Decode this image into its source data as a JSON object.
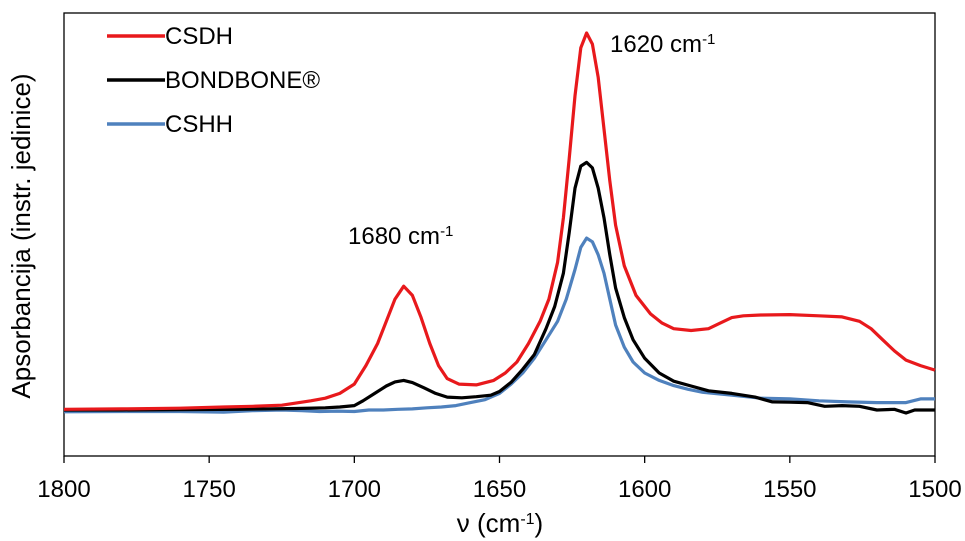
{
  "chart_data": {
    "type": "line",
    "title": "",
    "xlabel_main": "ν (cm",
    "xlabel_sup": "-1",
    "xlabel_end": ")",
    "ylabel": "Apsorbancija (instr. jedinice)",
    "xlim": [
      1800,
      1500
    ],
    "x_reversed": true,
    "ylim": [
      0,
      1.08
    ],
    "x_ticks": [
      1800,
      1750,
      1700,
      1650,
      1600,
      1550,
      1500
    ],
    "y_ticks_labeled": false,
    "grid": false,
    "legend": "top-left",
    "annotations": [
      {
        "id": "peak-1620",
        "text": "1620 cm",
        "sup": "-1",
        "x": 1620,
        "y": 1.02
      },
      {
        "id": "peak-1680",
        "text": "1680 cm",
        "sup": "-1",
        "x": 1680,
        "y": 0.46
      }
    ],
    "series": [
      {
        "name": "CSDH",
        "color": "#e8191c",
        "points": [
          [
            1800,
            0.002
          ],
          [
            1780,
            0.003
          ],
          [
            1760,
            0.005
          ],
          [
            1745,
            0.008
          ],
          [
            1735,
            0.01
          ],
          [
            1725,
            0.013
          ],
          [
            1715,
            0.025
          ],
          [
            1710,
            0.032
          ],
          [
            1705,
            0.045
          ],
          [
            1700,
            0.07
          ],
          [
            1696,
            0.12
          ],
          [
            1692,
            0.18
          ],
          [
            1689,
            0.24
          ],
          [
            1686,
            0.3
          ],
          [
            1683,
            0.335
          ],
          [
            1680,
            0.31
          ],
          [
            1677,
            0.25
          ],
          [
            1674,
            0.18
          ],
          [
            1671,
            0.12
          ],
          [
            1668,
            0.085
          ],
          [
            1664,
            0.07
          ],
          [
            1658,
            0.068
          ],
          [
            1652,
            0.08
          ],
          [
            1648,
            0.1
          ],
          [
            1644,
            0.13
          ],
          [
            1640,
            0.18
          ],
          [
            1636,
            0.24
          ],
          [
            1633,
            0.3
          ],
          [
            1630,
            0.4
          ],
          [
            1628,
            0.52
          ],
          [
            1626,
            0.68
          ],
          [
            1624,
            0.85
          ],
          [
            1622,
            0.98
          ],
          [
            1620,
            1.02
          ],
          [
            1618,
            0.99
          ],
          [
            1616,
            0.9
          ],
          [
            1614,
            0.76
          ],
          [
            1612,
            0.62
          ],
          [
            1610,
            0.5
          ],
          [
            1607,
            0.39
          ],
          [
            1603,
            0.31
          ],
          [
            1598,
            0.26
          ],
          [
            1594,
            0.235
          ],
          [
            1590,
            0.22
          ],
          [
            1584,
            0.215
          ],
          [
            1578,
            0.22
          ],
          [
            1574,
            0.235
          ],
          [
            1570,
            0.25
          ],
          [
            1566,
            0.255
          ],
          [
            1560,
            0.257
          ],
          [
            1550,
            0.258
          ],
          [
            1540,
            0.255
          ],
          [
            1532,
            0.252
          ],
          [
            1526,
            0.24
          ],
          [
            1522,
            0.22
          ],
          [
            1518,
            0.19
          ],
          [
            1514,
            0.16
          ],
          [
            1510,
            0.135
          ],
          [
            1505,
            0.12
          ],
          [
            1500,
            0.108
          ]
        ]
      },
      {
        "name": "BONDBONE®",
        "color": "#000000",
        "points": [
          [
            1800,
            0.0
          ],
          [
            1780,
            0.0
          ],
          [
            1760,
            0.001
          ],
          [
            1740,
            0.002
          ],
          [
            1720,
            0.004
          ],
          [
            1710,
            0.006
          ],
          [
            1705,
            0.008
          ],
          [
            1700,
            0.012
          ],
          [
            1697,
            0.025
          ],
          [
            1693,
            0.045
          ],
          [
            1689,
            0.065
          ],
          [
            1686,
            0.076
          ],
          [
            1683,
            0.08
          ],
          [
            1680,
            0.074
          ],
          [
            1676,
            0.06
          ],
          [
            1672,
            0.045
          ],
          [
            1668,
            0.035
          ],
          [
            1663,
            0.033
          ],
          [
            1658,
            0.036
          ],
          [
            1653,
            0.04
          ],
          [
            1650,
            0.05
          ],
          [
            1646,
            0.075
          ],
          [
            1642,
            0.11
          ],
          [
            1638,
            0.15
          ],
          [
            1634,
            0.22
          ],
          [
            1631,
            0.28
          ],
          [
            1628,
            0.37
          ],
          [
            1626,
            0.48
          ],
          [
            1624,
            0.6
          ],
          [
            1622,
            0.66
          ],
          [
            1620,
            0.67
          ],
          [
            1618,
            0.655
          ],
          [
            1616,
            0.6
          ],
          [
            1614,
            0.52
          ],
          [
            1612,
            0.42
          ],
          [
            1610,
            0.33
          ],
          [
            1607,
            0.25
          ],
          [
            1604,
            0.19
          ],
          [
            1600,
            0.14
          ],
          [
            1595,
            0.1
          ],
          [
            1590,
            0.078
          ],
          [
            1584,
            0.065
          ],
          [
            1578,
            0.052
          ],
          [
            1570,
            0.045
          ],
          [
            1562,
            0.035
          ],
          [
            1556,
            0.022
          ],
          [
            1550,
            0.021
          ],
          [
            1544,
            0.02
          ],
          [
            1538,
            0.01
          ],
          [
            1532,
            0.012
          ],
          [
            1526,
            0.01
          ],
          [
            1520,
            0.0
          ],
          [
            1514,
            0.002
          ],
          [
            1510,
            -0.008
          ],
          [
            1507,
            0.0
          ],
          [
            1500,
            0.0
          ]
        ]
      },
      {
        "name": "CSHH",
        "color": "#4f81bd",
        "points": [
          [
            1800,
            -0.005
          ],
          [
            1780,
            -0.004
          ],
          [
            1760,
            -0.004
          ],
          [
            1745,
            -0.006
          ],
          [
            1735,
            -0.002
          ],
          [
            1725,
            0.0
          ],
          [
            1718,
            -0.002
          ],
          [
            1712,
            -0.004
          ],
          [
            1706,
            -0.003
          ],
          [
            1700,
            -0.004
          ],
          [
            1695,
            0.0
          ],
          [
            1690,
            0.0
          ],
          [
            1685,
            0.002
          ],
          [
            1680,
            0.003
          ],
          [
            1675,
            0.006
          ],
          [
            1670,
            0.008
          ],
          [
            1665,
            0.012
          ],
          [
            1660,
            0.02
          ],
          [
            1655,
            0.028
          ],
          [
            1650,
            0.045
          ],
          [
            1646,
            0.07
          ],
          [
            1642,
            0.1
          ],
          [
            1638,
            0.14
          ],
          [
            1634,
            0.19
          ],
          [
            1630,
            0.24
          ],
          [
            1627,
            0.3
          ],
          [
            1624,
            0.38
          ],
          [
            1622,
            0.44
          ],
          [
            1620,
            0.465
          ],
          [
            1618,
            0.455
          ],
          [
            1616,
            0.42
          ],
          [
            1614,
            0.37
          ],
          [
            1612,
            0.3
          ],
          [
            1610,
            0.23
          ],
          [
            1607,
            0.17
          ],
          [
            1604,
            0.13
          ],
          [
            1600,
            0.1
          ],
          [
            1595,
            0.08
          ],
          [
            1590,
            0.066
          ],
          [
            1585,
            0.056
          ],
          [
            1580,
            0.048
          ],
          [
            1570,
            0.04
          ],
          [
            1560,
            0.032
          ],
          [
            1550,
            0.03
          ],
          [
            1540,
            0.025
          ],
          [
            1530,
            0.022
          ],
          [
            1520,
            0.02
          ],
          [
            1510,
            0.02
          ],
          [
            1505,
            0.03
          ],
          [
            1500,
            0.03
          ]
        ]
      }
    ]
  }
}
